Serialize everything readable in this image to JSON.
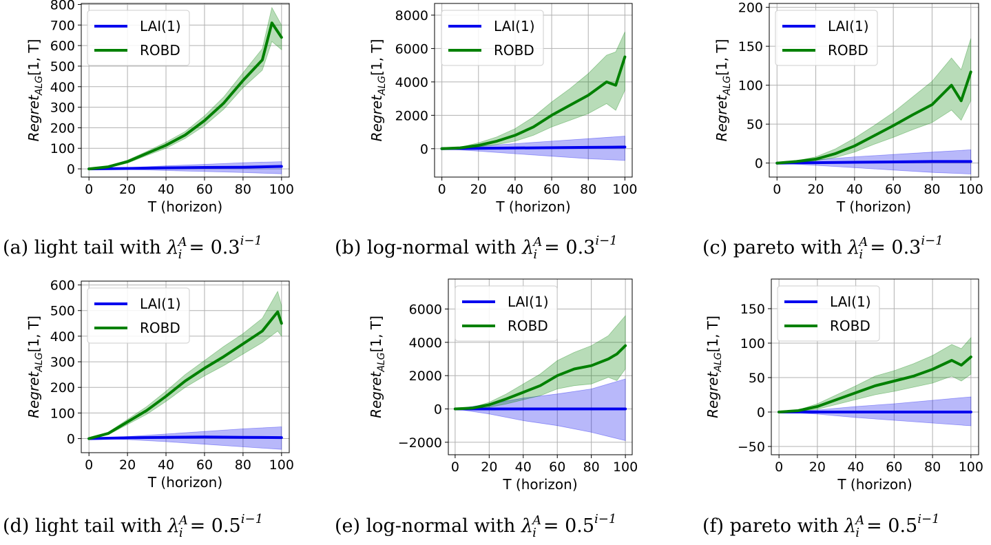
{
  "chart_data": [
    {
      "type": "line",
      "panel": "a",
      "caption": {
        "prefix": "(a) light tail with ",
        "lambda_base": "0.3"
      },
      "xlabel": "T (horizon)",
      "ylabel": {
        "main": "Regret",
        "sub": "ALG",
        "args": "[1, T]"
      },
      "xlim": [
        -4,
        104
      ],
      "ylim": [
        -40,
        805
      ],
      "xticks": [
        0,
        20,
        40,
        60,
        80,
        100
      ],
      "yticks": [
        0,
        100,
        200,
        300,
        400,
        500,
        600,
        700,
        800
      ],
      "legend": {
        "position": "top-left",
        "entries": [
          "LAI(1)",
          "ROBD"
        ]
      },
      "grid": true,
      "series": [
        {
          "name": "LAI(1)",
          "color": "#0000ee",
          "x": [
            0,
            20,
            40,
            60,
            80,
            100
          ],
          "y": [
            0,
            2,
            5,
            7,
            8,
            12
          ],
          "band_low": [
            0,
            -3,
            -8,
            -13,
            -18,
            -24
          ],
          "band_high": [
            0,
            6,
            15,
            22,
            30,
            35
          ]
        },
        {
          "name": "ROBD",
          "color": "#008000",
          "x": [
            0,
            10,
            20,
            30,
            40,
            50,
            60,
            70,
            80,
            90,
            95,
            100
          ],
          "y": [
            0,
            10,
            35,
            75,
            115,
            165,
            235,
            320,
            430,
            530,
            710,
            640
          ],
          "band_low": [
            0,
            6,
            28,
            65,
            100,
            148,
            210,
            290,
            395,
            480,
            620,
            580
          ],
          "band_high": [
            0,
            14,
            42,
            85,
            130,
            182,
            258,
            350,
            468,
            585,
            785,
            700
          ]
        }
      ]
    },
    {
      "type": "line",
      "panel": "b",
      "caption": {
        "prefix": "(b) log-normal with ",
        "lambda_base": "0.3"
      },
      "xlabel": "T (horizon)",
      "ylabel": {
        "main": "Regret",
        "sub": "ALG",
        "args": "[1, T]"
      },
      "xlim": [
        -4,
        104
      ],
      "ylim": [
        -1700,
        8700
      ],
      "xticks": [
        0,
        20,
        40,
        60,
        80,
        100
      ],
      "yticks": [
        0,
        2000,
        4000,
        6000,
        8000
      ],
      "legend": {
        "position": "top-left",
        "entries": [
          "LAI(1)",
          "ROBD"
        ]
      },
      "grid": true,
      "series": [
        {
          "name": "LAI(1)",
          "color": "#0000ee",
          "x": [
            0,
            20,
            40,
            60,
            80,
            100
          ],
          "y": [
            0,
            20,
            40,
            60,
            80,
            100
          ],
          "band_low": [
            0,
            -150,
            -300,
            -450,
            -600,
            -700
          ],
          "band_high": [
            0,
            150,
            300,
            450,
            600,
            750
          ]
        },
        {
          "name": "ROBD",
          "color": "#008000",
          "x": [
            0,
            10,
            20,
            30,
            40,
            50,
            60,
            70,
            80,
            90,
            95,
            100
          ],
          "y": [
            0,
            50,
            200,
            450,
            800,
            1300,
            2000,
            2600,
            3200,
            4000,
            3800,
            5500
          ],
          "band_low": [
            0,
            20,
            100,
            250,
            450,
            800,
            1300,
            1700,
            2100,
            2700,
            2300,
            3500
          ],
          "band_high": [
            0,
            90,
            350,
            700,
            1200,
            1900,
            2800,
            3600,
            4500,
            5600,
            5800,
            7000
          ]
        }
      ]
    },
    {
      "type": "line",
      "panel": "c",
      "caption": {
        "prefix": "(c) pareto with ",
        "lambda_base": "0.3"
      },
      "xlabel": "T (horizon)",
      "ylabel": {
        "main": "Regret",
        "sub": "ALG",
        "args": "[1, T]"
      },
      "xlim": [
        -4,
        104
      ],
      "ylim": [
        -18,
        205
      ],
      "xticks": [
        0,
        20,
        40,
        60,
        80,
        100
      ],
      "yticks": [
        0,
        50,
        100,
        150,
        200
      ],
      "legend": {
        "position": "top-left",
        "entries": [
          "LAI(1)",
          "ROBD"
        ]
      },
      "grid": true,
      "series": [
        {
          "name": "LAI(1)",
          "color": "#0000ee",
          "x": [
            0,
            20,
            40,
            60,
            80,
            100
          ],
          "y": [
            0,
            0.5,
            1,
            1.5,
            2,
            2
          ],
          "band_low": [
            0,
            -3,
            -6,
            -9,
            -12,
            -14
          ],
          "band_high": [
            0,
            4,
            8,
            11,
            14,
            17
          ]
        },
        {
          "name": "ROBD",
          "color": "#008000",
          "x": [
            0,
            10,
            20,
            30,
            40,
            50,
            60,
            70,
            80,
            90,
            95,
            100
          ],
          "y": [
            0,
            2,
            5,
            12,
            22,
            35,
            48,
            62,
            75,
            100,
            80,
            117
          ],
          "band_low": [
            0,
            1,
            3,
            7,
            14,
            24,
            33,
            43,
            52,
            68,
            55,
            80
          ],
          "band_high": [
            0,
            3,
            8,
            18,
            32,
            48,
            65,
            85,
            105,
            135,
            120,
            160
          ]
        }
      ]
    },
    {
      "type": "line",
      "panel": "d",
      "caption": {
        "prefix": "(d) light tail with ",
        "lambda_base": "0.5"
      },
      "xlabel": "T (horizon)",
      "ylabel": {
        "main": "Regret",
        "sub": "ALG",
        "args": "[1, T]"
      },
      "xlim": [
        -4,
        104
      ],
      "ylim": [
        -55,
        615
      ],
      "xticks": [
        0,
        20,
        40,
        60,
        80,
        100
      ],
      "yticks": [
        0,
        100,
        200,
        300,
        400,
        500,
        600
      ],
      "legend": {
        "position": "top-left",
        "entries": [
          "LAI(1)",
          "ROBD"
        ]
      },
      "grid": true,
      "series": [
        {
          "name": "LAI(1)",
          "color": "#0000ee",
          "x": [
            0,
            20,
            40,
            60,
            80,
            100
          ],
          "y": [
            0,
            3,
            5,
            6,
            5,
            4
          ],
          "band_low": [
            0,
            -4,
            -12,
            -22,
            -32,
            -42
          ],
          "band_high": [
            0,
            8,
            18,
            28,
            38,
            46
          ]
        },
        {
          "name": "ROBD",
          "color": "#008000",
          "x": [
            0,
            10,
            20,
            30,
            40,
            50,
            60,
            70,
            80,
            90,
            98,
            100
          ],
          "y": [
            0,
            20,
            65,
            110,
            165,
            225,
            275,
            320,
            370,
            420,
            495,
            450
          ],
          "band_low": [
            0,
            15,
            55,
            95,
            145,
            200,
            245,
            285,
            330,
            375,
            420,
            400
          ],
          "band_high": [
            0,
            25,
            75,
            125,
            185,
            250,
            305,
            360,
            410,
            470,
            575,
            520
          ]
        }
      ]
    },
    {
      "type": "line",
      "panel": "e",
      "caption": {
        "prefix": "(e) log-normal with ",
        "lambda_base": "0.5"
      },
      "xlabel": "T (horizon)",
      "ylabel": {
        "main": "Regret",
        "sub": "ALG",
        "args": "[1, T]"
      },
      "xlim": [
        -4,
        104
      ],
      "ylim": [
        -2750,
        7800
      ],
      "xticks": [
        0,
        20,
        40,
        60,
        80,
        100
      ],
      "yticks": [
        -2000,
        0,
        2000,
        4000,
        6000
      ],
      "legend": {
        "position": "top-left",
        "entries": [
          "LAI(1)",
          "ROBD"
        ]
      },
      "grid": true,
      "series": [
        {
          "name": "LAI(1)",
          "color": "#0000ee",
          "x": [
            0,
            20,
            40,
            60,
            80,
            100
          ],
          "y": [
            0,
            0,
            0,
            0,
            0,
            0
          ],
          "band_low": [
            0,
            -300,
            -700,
            -1000,
            -1400,
            -1900
          ],
          "band_high": [
            0,
            300,
            650,
            900,
            1200,
            1800
          ]
        },
        {
          "name": "ROBD",
          "color": "#008000",
          "x": [
            0,
            10,
            20,
            30,
            40,
            50,
            60,
            70,
            80,
            90,
            95,
            100
          ],
          "y": [
            0,
            50,
            250,
            600,
            1000,
            1400,
            2000,
            2400,
            2600,
            3000,
            3300,
            3800
          ],
          "band_low": [
            0,
            20,
            100,
            300,
            550,
            800,
            1200,
            1400,
            1500,
            1900,
            1700,
            2400
          ],
          "band_high": [
            0,
            90,
            400,
            900,
            1500,
            2100,
            2900,
            3400,
            3800,
            4400,
            5000,
            5600
          ]
        }
      ]
    },
    {
      "type": "line",
      "panel": "f",
      "caption": {
        "prefix": "(f) pareto with ",
        "lambda_base": "0.5"
      },
      "xlabel": "T (horizon)",
      "ylabel": {
        "main": "Regret",
        "sub": "ALG",
        "args": "[1, T]"
      },
      "xlim": [
        -4,
        104
      ],
      "ylim": [
        -62,
        193
      ],
      "xticks": [
        0,
        20,
        40,
        60,
        80,
        100
      ],
      "yticks": [
        -50,
        0,
        50,
        100,
        150
      ],
      "legend": {
        "position": "top-left",
        "entries": [
          "LAI(1)",
          "ROBD"
        ]
      },
      "grid": true,
      "series": [
        {
          "name": "LAI(1)",
          "color": "#0000ee",
          "x": [
            0,
            20,
            40,
            60,
            80,
            100
          ],
          "y": [
            0,
            0,
            0,
            0,
            0,
            0
          ],
          "band_low": [
            0,
            -3,
            -8,
            -12,
            -16,
            -20
          ],
          "band_high": [
            0,
            3,
            8,
            12,
            17,
            22
          ]
        },
        {
          "name": "ROBD",
          "color": "#008000",
          "x": [
            0,
            10,
            20,
            30,
            40,
            50,
            60,
            70,
            80,
            90,
            95,
            100
          ],
          "y": [
            0,
            2,
            8,
            18,
            28,
            38,
            45,
            52,
            62,
            75,
            68,
            80
          ],
          "band_low": [
            0,
            1,
            4,
            11,
            18,
            25,
            30,
            36,
            42,
            52,
            45,
            55
          ],
          "band_high": [
            0,
            3,
            12,
            25,
            38,
            52,
            60,
            70,
            82,
            98,
            92,
            108
          ]
        }
      ]
    }
  ]
}
